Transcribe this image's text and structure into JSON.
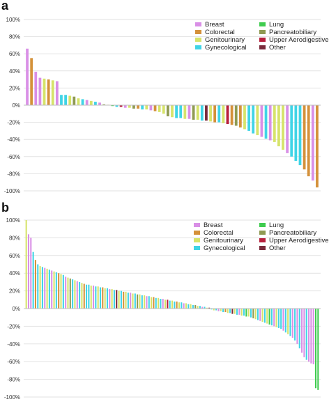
{
  "palette": {
    "Breast": "#d98fe6",
    "Colorectal": "#d4913a",
    "Genitourinary": "#d6e36a",
    "Gynecological": "#3fd4e6",
    "Lung": "#3fcc4f",
    "Pancreatobiliary": "#8f9a52",
    "Upper Aerodigestive": "#b81f3c",
    "Other": "#7a2a3b"
  },
  "chart_data": [
    {
      "panel_label": "a",
      "type": "bar",
      "ylim": [
        -100,
        100
      ],
      "yticks": [
        "100%",
        "80%",
        "60%",
        "40%",
        "20%",
        "0%",
        "-20%",
        "-40%",
        "-60%",
        "-80%",
        "-100%"
      ],
      "grid": true,
      "legend_position": "top-right",
      "legend": [
        "Breast",
        "Colorectal",
        "Genitourinary",
        "Gynecological",
        "Lung",
        "Pancreatobiliary",
        "Upper Aerodigestive",
        "Other"
      ],
      "values": [
        {
          "v": 66,
          "c": "Breast"
        },
        {
          "v": 55,
          "c": "Colorectal"
        },
        {
          "v": 39,
          "c": "Breast"
        },
        {
          "v": 32,
          "c": "Breast"
        },
        {
          "v": 31,
          "c": "Genitourinary"
        },
        {
          "v": 30,
          "c": "Colorectal"
        },
        {
          "v": 29,
          "c": "Genitourinary"
        },
        {
          "v": 28,
          "c": "Breast"
        },
        {
          "v": 12,
          "c": "Gynecological"
        },
        {
          "v": 12,
          "c": "Gynecological"
        },
        {
          "v": 11,
          "c": "Genitourinary"
        },
        {
          "v": 10,
          "c": "Pancreatobiliary"
        },
        {
          "v": 8,
          "c": "Genitourinary"
        },
        {
          "v": 7,
          "c": "Gynecological"
        },
        {
          "v": 6,
          "c": "Breast"
        },
        {
          "v": 5,
          "c": "Genitourinary"
        },
        {
          "v": 4,
          "c": "Gynecological"
        },
        {
          "v": 3,
          "c": "Breast"
        },
        {
          "v": 1,
          "c": "Pancreatobiliary"
        },
        {
          "v": 0.5,
          "c": "Colorectal"
        },
        {
          "v": -1,
          "c": "Lung"
        },
        {
          "v": -2,
          "c": "Gynecological"
        },
        {
          "v": -2,
          "c": "Upper Aerodigestive"
        },
        {
          "v": -3,
          "c": "Breast"
        },
        {
          "v": -3,
          "c": "Genitourinary"
        },
        {
          "v": -4,
          "c": "Pancreatobiliary"
        },
        {
          "v": -4,
          "c": "Colorectal"
        },
        {
          "v": -5,
          "c": "Gynecological"
        },
        {
          "v": -5,
          "c": "Genitourinary"
        },
        {
          "v": -6,
          "c": "Breast"
        },
        {
          "v": -7,
          "c": "Colorectal"
        },
        {
          "v": -8,
          "c": "Genitourinary"
        },
        {
          "v": -10,
          "c": "Genitourinary"
        },
        {
          "v": -13,
          "c": "Pancreatobiliary"
        },
        {
          "v": -14,
          "c": "Genitourinary"
        },
        {
          "v": -15,
          "c": "Gynecological"
        },
        {
          "v": -15,
          "c": "Gynecological"
        },
        {
          "v": -16,
          "c": "Genitourinary"
        },
        {
          "v": -16,
          "c": "Breast"
        },
        {
          "v": -17,
          "c": "Pancreatobiliary"
        },
        {
          "v": -17,
          "c": "Genitourinary"
        },
        {
          "v": -18,
          "c": "Gynecological"
        },
        {
          "v": -18,
          "c": "Other"
        },
        {
          "v": -19,
          "c": "Genitourinary"
        },
        {
          "v": -20,
          "c": "Colorectal"
        },
        {
          "v": -20,
          "c": "Gynecological"
        },
        {
          "v": -21,
          "c": "Genitourinary"
        },
        {
          "v": -22,
          "c": "Upper Aerodigestive"
        },
        {
          "v": -23,
          "c": "Colorectal"
        },
        {
          "v": -24,
          "c": "Pancreatobiliary"
        },
        {
          "v": -26,
          "c": "Colorectal"
        },
        {
          "v": -28,
          "c": "Genitourinary"
        },
        {
          "v": -30,
          "c": "Gynecological"
        },
        {
          "v": -33,
          "c": "Gynecological"
        },
        {
          "v": -35,
          "c": "Genitourinary"
        },
        {
          "v": -37,
          "c": "Breast"
        },
        {
          "v": -39,
          "c": "Gynecological"
        },
        {
          "v": -41,
          "c": "Breast"
        },
        {
          "v": -43,
          "c": "Genitourinary"
        },
        {
          "v": -48,
          "c": "Genitourinary"
        },
        {
          "v": -52,
          "c": "Genitourinary"
        },
        {
          "v": -56,
          "c": "Breast"
        },
        {
          "v": -60,
          "c": "Gynecological"
        },
        {
          "v": -65,
          "c": "Gynecological"
        },
        {
          "v": -70,
          "c": "Gynecological"
        },
        {
          "v": -75,
          "c": "Colorectal"
        },
        {
          "v": -83,
          "c": "Colorectal"
        },
        {
          "v": -88,
          "c": "Breast"
        },
        {
          "v": -96,
          "c": "Colorectal"
        }
      ]
    },
    {
      "panel_label": "b",
      "type": "bar",
      "ylim": [
        -100,
        100
      ],
      "yticks": [
        "100%",
        "80%",
        "60%",
        "40%",
        "20%",
        "0%",
        "-20%",
        "-40%",
        "-60%",
        "-80%",
        "-100%"
      ],
      "grid": true,
      "legend_position": "top-right",
      "legend": [
        "Breast",
        "Colorectal",
        "Genitourinary",
        "Gynecological",
        "Lung",
        "Pancreatobiliary",
        "Upper Aerodigestive",
        "Other"
      ],
      "values": [
        {
          "v": 100,
          "c": "Genitourinary"
        },
        {
          "v": 84,
          "c": "Breast"
        },
        {
          "v": 80,
          "c": "Breast"
        },
        {
          "v": 64,
          "c": "Gynecological"
        },
        {
          "v": 55,
          "c": "Colorectal"
        },
        {
          "v": 50,
          "c": "Gynecological"
        },
        {
          "v": 48,
          "c": "Genitourinary"
        },
        {
          "v": 47,
          "c": "Gynecological"
        },
        {
          "v": 46,
          "c": "Breast"
        },
        {
          "v": 45,
          "c": "Genitourinary"
        },
        {
          "v": 44,
          "c": "Gynecological"
        },
        {
          "v": 43,
          "c": "Breast"
        },
        {
          "v": 42,
          "c": "Genitourinary"
        },
        {
          "v": 41,
          "c": "Gynecological"
        },
        {
          "v": 40,
          "c": "Colorectal"
        },
        {
          "v": 39,
          "c": "Genitourinary"
        },
        {
          "v": 38,
          "c": "Gynecological"
        },
        {
          "v": 36,
          "c": "Breast"
        },
        {
          "v": 35,
          "c": "Genitourinary"
        },
        {
          "v": 34,
          "c": "Pancreatobiliary"
        },
        {
          "v": 33,
          "c": "Gynecological"
        },
        {
          "v": 32,
          "c": "Genitourinary"
        },
        {
          "v": 31,
          "c": "Breast"
        },
        {
          "v": 30,
          "c": "Gynecological"
        },
        {
          "v": 29,
          "c": "Genitourinary"
        },
        {
          "v": 28,
          "c": "Colorectal"
        },
        {
          "v": 27,
          "c": "Gynecological"
        },
        {
          "v": 27,
          "c": "Gynecological"
        },
        {
          "v": 26,
          "c": "Genitourinary"
        },
        {
          "v": 26,
          "c": "Breast"
        },
        {
          "v": 25,
          "c": "Gynecological"
        },
        {
          "v": 25,
          "c": "Genitourinary"
        },
        {
          "v": 24,
          "c": "Gynecological"
        },
        {
          "v": 24,
          "c": "Colorectal"
        },
        {
          "v": 23,
          "c": "Genitourinary"
        },
        {
          "v": 23,
          "c": "Gynecological"
        },
        {
          "v": 22,
          "c": "Breast"
        },
        {
          "v": 22,
          "c": "Genitourinary"
        },
        {
          "v": 21,
          "c": "Gynecological"
        },
        {
          "v": 21,
          "c": "Other"
        },
        {
          "v": 20,
          "c": "Genitourinary"
        },
        {
          "v": 20,
          "c": "Gynecological"
        },
        {
          "v": 19,
          "c": "Colorectal"
        },
        {
          "v": 19,
          "c": "Genitourinary"
        },
        {
          "v": 18,
          "c": "Gynecological"
        },
        {
          "v": 18,
          "c": "Breast"
        },
        {
          "v": 17,
          "c": "Genitourinary"
        },
        {
          "v": 17,
          "c": "Gynecological"
        },
        {
          "v": 16,
          "c": "Pancreatobiliary"
        },
        {
          "v": 16,
          "c": "Genitourinary"
        },
        {
          "v": 15,
          "c": "Gynecological"
        },
        {
          "v": 15,
          "c": "Genitourinary"
        },
        {
          "v": 14,
          "c": "Breast"
        },
        {
          "v": 14,
          "c": "Gynecological"
        },
        {
          "v": 13,
          "c": "Genitourinary"
        },
        {
          "v": 13,
          "c": "Colorectal"
        },
        {
          "v": 12,
          "c": "Gynecological"
        },
        {
          "v": 12,
          "c": "Genitourinary"
        },
        {
          "v": 11,
          "c": "Gynecological"
        },
        {
          "v": 11,
          "c": "Breast"
        },
        {
          "v": 10,
          "c": "Genitourinary"
        },
        {
          "v": 10,
          "c": "Upper Aerodigestive"
        },
        {
          "v": 9,
          "c": "Gynecological"
        },
        {
          "v": 9,
          "c": "Genitourinary"
        },
        {
          "v": 8,
          "c": "Gynecological"
        },
        {
          "v": 8,
          "c": "Colorectal"
        },
        {
          "v": 7,
          "c": "Genitourinary"
        },
        {
          "v": 7,
          "c": "Gynecological"
        },
        {
          "v": 6,
          "c": "Breast"
        },
        {
          "v": 6,
          "c": "Genitourinary"
        },
        {
          "v": 5,
          "c": "Gynecological"
        },
        {
          "v": 5,
          "c": "Genitourinary"
        },
        {
          "v": 4,
          "c": "Gynecological"
        },
        {
          "v": 4,
          "c": "Pancreatobiliary"
        },
        {
          "v": 3,
          "c": "Genitourinary"
        },
        {
          "v": 3,
          "c": "Gynecological"
        },
        {
          "v": 2,
          "c": "Breast"
        },
        {
          "v": 2,
          "c": "Gynecological"
        },
        {
          "v": 1,
          "c": "Genitourinary"
        },
        {
          "v": 1,
          "c": "Other"
        },
        {
          "v": -1,
          "c": "Gynecological"
        },
        {
          "v": -2,
          "c": "Genitourinary"
        },
        {
          "v": -2,
          "c": "Gynecological"
        },
        {
          "v": -3,
          "c": "Breast"
        },
        {
          "v": -3,
          "c": "Genitourinary"
        },
        {
          "v": -4,
          "c": "Gynecological"
        },
        {
          "v": -4,
          "c": "Colorectal"
        },
        {
          "v": -5,
          "c": "Genitourinary"
        },
        {
          "v": -5,
          "c": "Gynecological"
        },
        {
          "v": -6,
          "c": "Other"
        },
        {
          "v": -6,
          "c": "Genitourinary"
        },
        {
          "v": -7,
          "c": "Gynecological"
        },
        {
          "v": -7,
          "c": "Breast"
        },
        {
          "v": -8,
          "c": "Genitourinary"
        },
        {
          "v": -8,
          "c": "Gynecological"
        },
        {
          "v": -9,
          "c": "Lung"
        },
        {
          "v": -9,
          "c": "Genitourinary"
        },
        {
          "v": -10,
          "c": "Gynecological"
        },
        {
          "v": -11,
          "c": "Pancreatobiliary"
        },
        {
          "v": -12,
          "c": "Genitourinary"
        },
        {
          "v": -13,
          "c": "Gynecological"
        },
        {
          "v": -14,
          "c": "Breast"
        },
        {
          "v": -15,
          "c": "Genitourinary"
        },
        {
          "v": -16,
          "c": "Gynecological"
        },
        {
          "v": -17,
          "c": "Genitourinary"
        },
        {
          "v": -18,
          "c": "Lung"
        },
        {
          "v": -19,
          "c": "Gynecological"
        },
        {
          "v": -20,
          "c": "Breast"
        },
        {
          "v": -21,
          "c": "Genitourinary"
        },
        {
          "v": -22,
          "c": "Gynecological"
        },
        {
          "v": -23,
          "c": "Gynecological"
        },
        {
          "v": -25,
          "c": "Breast"
        },
        {
          "v": -27,
          "c": "Gynecological"
        },
        {
          "v": -29,
          "c": "Genitourinary"
        },
        {
          "v": -31,
          "c": "Gynecological"
        },
        {
          "v": -33,
          "c": "Breast"
        },
        {
          "v": -36,
          "c": "Gynecological"
        },
        {
          "v": -40,
          "c": "Breast"
        },
        {
          "v": -45,
          "c": "Gynecological"
        },
        {
          "v": -50,
          "c": "Breast"
        },
        {
          "v": -55,
          "c": "Breast"
        },
        {
          "v": -58,
          "c": "Gynecological"
        },
        {
          "v": -60,
          "c": "Breast"
        },
        {
          "v": -62,
          "c": "Breast"
        },
        {
          "v": -63,
          "c": "Breast"
        },
        {
          "v": -90,
          "c": "Lung"
        },
        {
          "v": -92,
          "c": "Lung"
        }
      ]
    }
  ]
}
